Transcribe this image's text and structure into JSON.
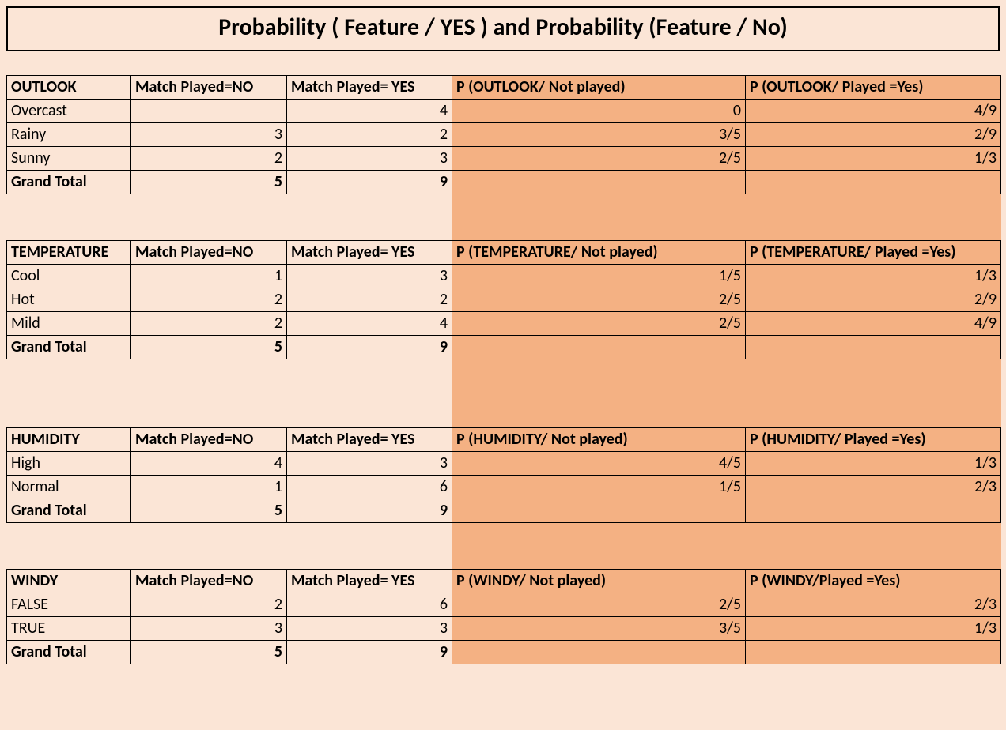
{
  "title": "Probability ( Feature / YES ) and Probability (Feature / No)",
  "colors": {
    "light": "#fbe5d6",
    "dark": "#f4b183",
    "border": "#000000"
  },
  "headers_common": {
    "col_no": "Match Played=NO",
    "col_yes": "Match Played= YES"
  },
  "tables": [
    {
      "feature": "OUTLOOK",
      "p_no_header": "P (OUTLOOK/ Not played)",
      "p_yes_header": "P (OUTLOOK/ Played =Yes)",
      "rows": [
        {
          "label": "Overcast",
          "no": "",
          "yes": "4",
          "p_no": "0",
          "p_yes": "4/9"
        },
        {
          "label": "Rainy",
          "no": "3",
          "yes": "2",
          "p_no": "3/5",
          "p_yes": "2/9"
        },
        {
          "label": "Sunny",
          "no": "2",
          "yes": "3",
          "p_no": "2/5",
          "p_yes": "1/3"
        }
      ],
      "total": {
        "label": "Grand Total",
        "no": "5",
        "yes": "9"
      },
      "gap_after": 2
    },
    {
      "feature": "TEMPERATURE",
      "p_no_header": "P (TEMPERATURE/ Not played)",
      "p_yes_header": "P (TEMPERATURE/ Played =Yes)",
      "rows": [
        {
          "label": "Cool",
          "no": "1",
          "yes": "3",
          "p_no": "1/5",
          "p_yes": "1/3"
        },
        {
          "label": "Hot",
          "no": "2",
          "yes": "2",
          "p_no": "2/5",
          "p_yes": "2/9"
        },
        {
          "label": "Mild",
          "no": "2",
          "yes": "4",
          "p_no": "2/5",
          "p_yes": "4/9"
        }
      ],
      "total": {
        "label": "Grand Total",
        "no": "5",
        "yes": "9"
      },
      "gap_after": 3
    },
    {
      "feature": "HUMIDITY",
      "p_no_header": "P (HUMIDITY/ Not played)",
      "p_yes_header": "P (HUMIDITY/ Played =Yes)",
      "rows": [
        {
          "label": "High",
          "no": "4",
          "yes": "3",
          "p_no": "4/5",
          "p_yes": "1/3"
        },
        {
          "label": "Normal",
          "no": "1",
          "yes": "6",
          "p_no": "1/5",
          "p_yes": "2/3"
        }
      ],
      "total": {
        "label": "Grand Total",
        "no": "5",
        "yes": "9"
      },
      "gap_after": 2
    },
    {
      "feature": "WINDY",
      "p_no_header": "P (WINDY/ Not played)",
      "p_yes_header": "P (WINDY/Played =Yes)",
      "rows": [
        {
          "label": "FALSE",
          "no": "2",
          "yes": "6",
          "p_no": "2/5",
          "p_yes": "2/3"
        },
        {
          "label": "TRUE",
          "no": "3",
          "yes": "3",
          "p_no": "3/5",
          "p_yes": "1/3"
        }
      ],
      "total": {
        "label": "Grand Total",
        "no": "5",
        "yes": "9"
      },
      "gap_after": 0
    }
  ]
}
